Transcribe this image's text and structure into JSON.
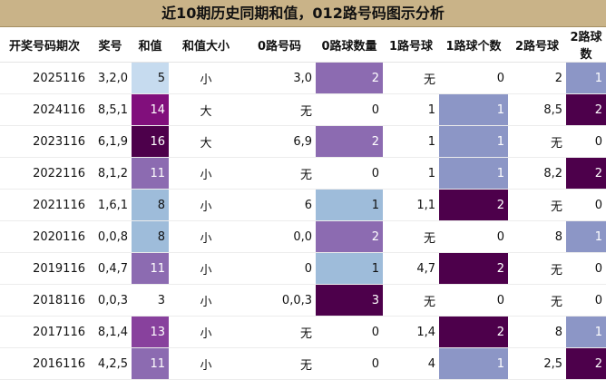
{
  "title": "近10期历史同期和值，012路号码图示分析",
  "headers": [
    "开奖号码期次",
    "奖号",
    "和值",
    "和值大小",
    "0路号码",
    "0路球数量",
    "1路号球",
    "1路球个数",
    "2路号球",
    "2路球数"
  ],
  "rows": [
    [
      "2025116",
      "3,2,0",
      "5",
      "小",
      "3,0",
      "2",
      "无",
      "0",
      "2",
      "1"
    ],
    [
      "2024116",
      "8,5,1",
      "14",
      "大",
      "无",
      "0",
      "1",
      "1",
      "8,5",
      "2"
    ],
    [
      "2023116",
      "6,1,9",
      "16",
      "大",
      "6,9",
      "2",
      "1",
      "1",
      "无",
      "0"
    ],
    [
      "2022116",
      "8,1,2",
      "11",
      "小",
      "无",
      "0",
      "1",
      "1",
      "8,2",
      "2"
    ],
    [
      "2021116",
      "1,6,1",
      "8",
      "小",
      "6",
      "1",
      "1,1",
      "2",
      "无",
      "0"
    ],
    [
      "2020116",
      "0,0,8",
      "8",
      "小",
      "0,0",
      "2",
      "无",
      "0",
      "8",
      "1"
    ],
    [
      "2019116",
      "0,4,7",
      "11",
      "小",
      "0",
      "1",
      "4,7",
      "2",
      "无",
      "0"
    ],
    [
      "2018116",
      "0,0,3",
      "3",
      "小",
      "0,0,3",
      "3",
      "无",
      "0",
      "无",
      "0"
    ],
    [
      "2017116",
      "8,1,4",
      "13",
      "小",
      "无",
      "0",
      "1,4",
      "2",
      "8",
      "1"
    ],
    [
      "2016116",
      "4,2,5",
      "11",
      "小",
      "无",
      "0",
      "4",
      "1",
      "2,5",
      "2"
    ]
  ],
  "colors": {
    "title_bg": "#c9b388",
    "sum": {
      "3": "#ffffff",
      "5": "#c6dbef",
      "8": "#9ebcda",
      "11": "#8c6bb1",
      "13": "#88419d",
      "14": "#810f7c",
      "16": "#4d004b"
    },
    "count": {
      "0": "#ffffff",
      "1": "#9ebcda",
      "2": "#8c6bb1",
      "3": "#4d004b"
    },
    "count_1lu": {
      "0": "#ffffff",
      "1": "#8c96c6",
      "2": "#4d004b"
    },
    "count_2lu": {
      "0": "#ffffff",
      "1": "#8c96c6",
      "2": "#4d004b"
    }
  }
}
